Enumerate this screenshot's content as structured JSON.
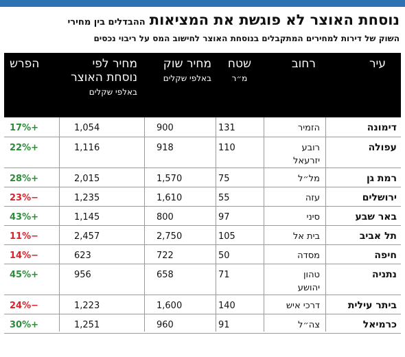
{
  "header": {
    "title": "נוסחת האוצר לא פוגשת את המציאות",
    "subtitle_inline": "ההבדלים בין מחירי",
    "subtitle_line2": "השוק של דירות למחירים המתקבלים בנוסחת האוצר לחישוב המס על ריבוי נכסים"
  },
  "columns": {
    "city": {
      "main": "עיר",
      "sub": ""
    },
    "street": {
      "main": "רחוב",
      "sub": ""
    },
    "area": {
      "main": "שטח",
      "sub": "מ״ר"
    },
    "market": {
      "main": "מחיר שוק",
      "sub": "באלפי שקלים"
    },
    "treasury": {
      "main": "מחיר לפי",
      "main2": "נוסחת האוצר",
      "sub": "באלפי שקלים"
    },
    "diff": {
      "main": "הפרש",
      "sub": ""
    }
  },
  "colors": {
    "positive": "#2e8b3a",
    "negative": "#d8232a",
    "header_bg": "#000000",
    "accent_bar": "#2f72b4"
  },
  "rows": [
    {
      "city": "דימונה",
      "street": "הזמיר",
      "street2": "",
      "area": "131",
      "market": "900",
      "treasury": "1,054",
      "diff": "+17%",
      "sign": "pos"
    },
    {
      "city": "עפולה",
      "street": "רובע",
      "street2": "יזרעאל",
      "area": "110",
      "market": "918",
      "treasury": "1,116",
      "diff": "+22%",
      "sign": "pos"
    },
    {
      "city": "רמת גן",
      "street": "מל״ל",
      "street2": "",
      "area": "75",
      "market": "1,570",
      "treasury": "2,015",
      "diff": "+28%",
      "sign": "pos"
    },
    {
      "city": "ירושלים",
      "street": "עזה",
      "street2": "",
      "area": "55",
      "market": "1,610",
      "treasury": "1,235",
      "diff": "−23%",
      "sign": "neg"
    },
    {
      "city": "באר שבע",
      "street": "סיני",
      "street2": "",
      "area": "97",
      "market": "800",
      "treasury": "1,145",
      "diff": "+43%",
      "sign": "pos"
    },
    {
      "city": "תל אביב",
      "street": "בית אל",
      "street2": "",
      "area": "105",
      "market": "2,750",
      "treasury": "2,457",
      "diff": "−11%",
      "sign": "neg"
    },
    {
      "city": "חיפה",
      "street": "מסדה",
      "street2": "",
      "area": "50",
      "market": "722",
      "treasury": "623",
      "diff": "−14%",
      "sign": "neg"
    },
    {
      "city": "נתניה",
      "street": "טהון",
      "street2": "יהושע",
      "area": "71",
      "market": "658",
      "treasury": "956",
      "diff": "+45%",
      "sign": "pos"
    },
    {
      "city": "ביתר עילית",
      "street": "דרכי איש",
      "street2": "",
      "area": "140",
      "market": "1,600",
      "treasury": "1,223",
      "diff": "−24%",
      "sign": "neg"
    },
    {
      "city": "כרמיאל",
      "street": "צה״ל",
      "street2": "",
      "area": "91",
      "market": "960",
      "treasury": "1,251",
      "diff": "+30%",
      "sign": "pos"
    }
  ]
}
